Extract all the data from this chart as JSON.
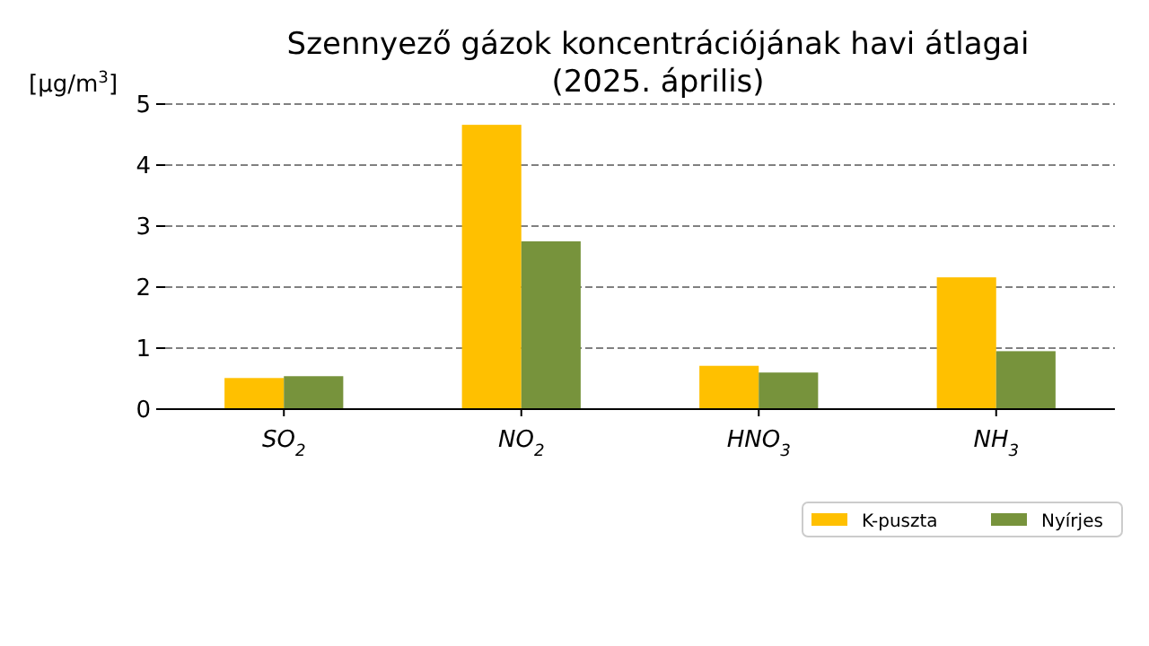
{
  "chart_data": {
    "type": "bar",
    "title": "Szennyező gázok koncentrációjának havi átlagai\n(2025. április)",
    "ylabel": "[μg/m$^{3}$]",
    "categories": [
      "SO$_{2}$",
      "NO$_{2}$",
      "HNO$_{3}$",
      "NH$_{3}$"
    ],
    "series": [
      {
        "name": "K-puszta",
        "color": "#ffc000",
        "values": [
          0.51,
          4.66,
          0.71,
          2.16
        ]
      },
      {
        "name": "Nyírjes",
        "color": "#77933c",
        "values": [
          0.54,
          2.75,
          0.6,
          0.95
        ]
      }
    ],
    "ylim": [
      0,
      5
    ],
    "yticks": [
      0,
      1,
      2,
      3,
      4,
      5
    ],
    "grid": "y",
    "legend": "bottom right"
  }
}
